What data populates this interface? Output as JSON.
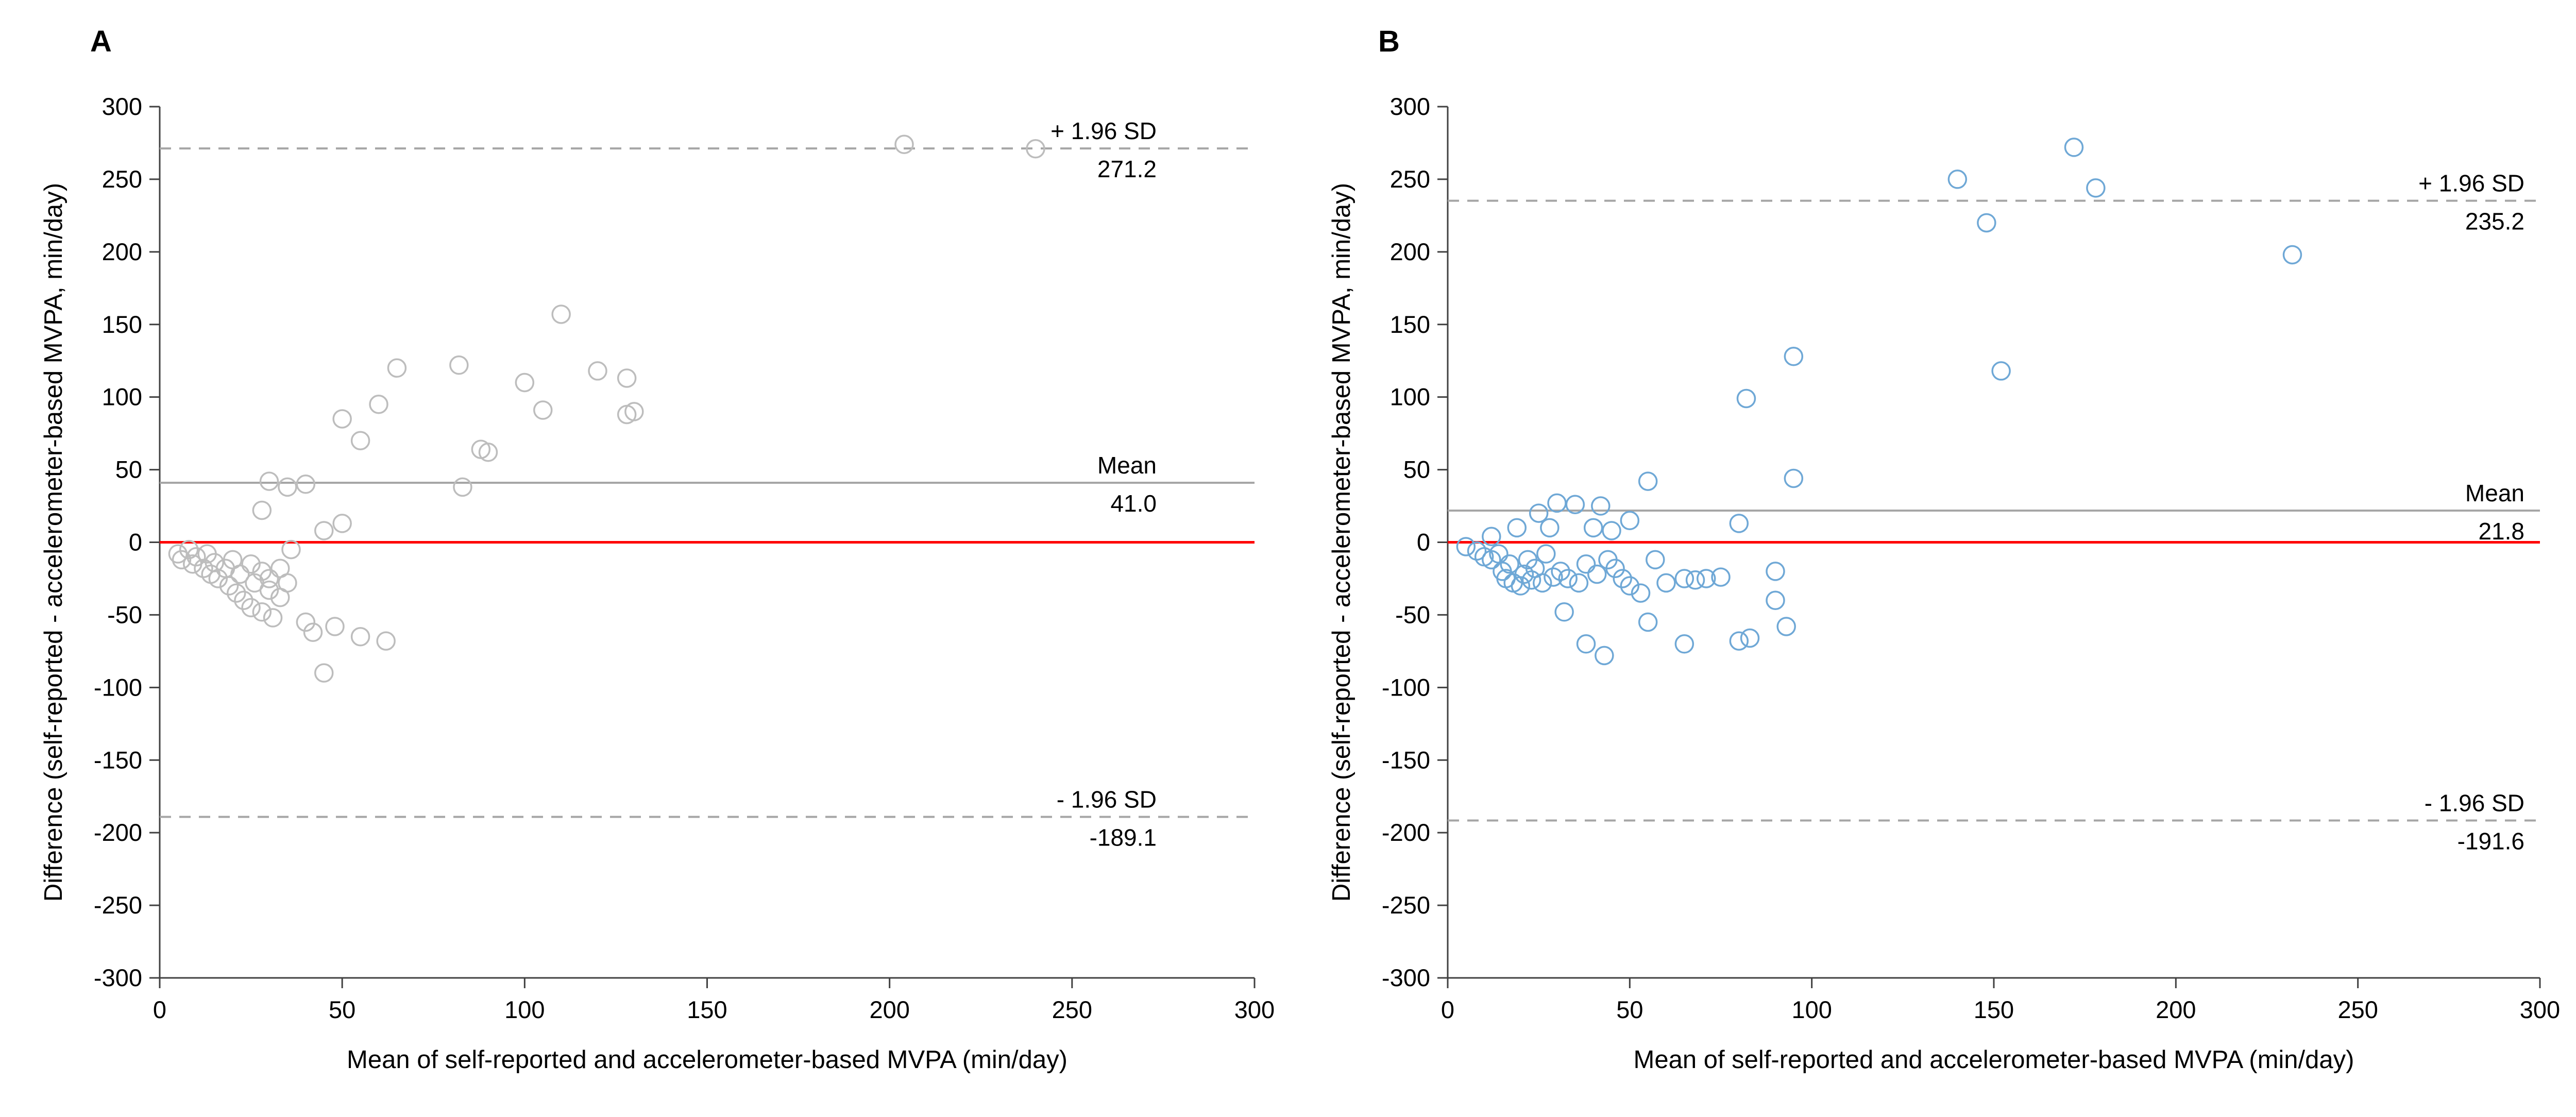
{
  "chart_data": [
    {
      "type": "scatter",
      "panel_label": "A",
      "xlabel": "Mean of self-reported and accelerometer-based MVPA (min/day)",
      "ylabel": "Difference (self-reported - accelerometer-based MVPA, min/day)",
      "xlim": [
        0,
        300
      ],
      "ylim": [
        -300,
        300
      ],
      "xticks": [
        0,
        50,
        100,
        150,
        200,
        250,
        300
      ],
      "yticks": [
        -300,
        -250,
        -200,
        -150,
        -100,
        -50,
        0,
        50,
        100,
        150,
        200,
        250,
        300
      ],
      "grid": false,
      "legend": "none",
      "marker": {
        "shape": "circle",
        "fill": "none",
        "stroke": "#bdbdbd"
      },
      "reference_lines": [
        {
          "id": "upper-loa",
          "y": 271.2,
          "style": "dashed",
          "color": "#a6a6a6",
          "label": "+ 1.96 SD",
          "value_label": "271.2"
        },
        {
          "id": "mean",
          "y": 41.0,
          "style": "solid",
          "color": "#a6a6a6",
          "label": "Mean",
          "value_label": "41.0"
        },
        {
          "id": "zero",
          "y": 0,
          "style": "solid",
          "color": "#ff0000",
          "label": "",
          "value_label": ""
        },
        {
          "id": "lower-loa",
          "y": -189.1,
          "style": "dashed",
          "color": "#a6a6a6",
          "label": "- 1.96 SD",
          "value_label": "-189.1"
        }
      ],
      "points": [
        [
          5,
          -8
        ],
        [
          6,
          -12
        ],
        [
          8,
          -5
        ],
        [
          9,
          -15
        ],
        [
          10,
          -10
        ],
        [
          12,
          -18
        ],
        [
          13,
          -8
        ],
        [
          14,
          -22
        ],
        [
          15,
          -14
        ],
        [
          16,
          -25
        ],
        [
          18,
          -18
        ],
        [
          19,
          -30
        ],
        [
          20,
          -12
        ],
        [
          21,
          -35
        ],
        [
          22,
          -22
        ],
        [
          23,
          -40
        ],
        [
          25,
          -15
        ],
        [
          25,
          -45
        ],
        [
          26,
          -28
        ],
        [
          28,
          -20
        ],
        [
          28,
          -48
        ],
        [
          30,
          -33
        ],
        [
          30,
          -25
        ],
        [
          31,
          -52
        ],
        [
          33,
          -38
        ],
        [
          33,
          -18
        ],
        [
          35,
          -28
        ],
        [
          36,
          -5
        ],
        [
          40,
          -55
        ],
        [
          42,
          -62
        ],
        [
          45,
          -90
        ],
        [
          48,
          -58
        ],
        [
          55,
          -65
        ],
        [
          62,
          -68
        ],
        [
          28,
          22
        ],
        [
          30,
          42
        ],
        [
          35,
          38
        ],
        [
          40,
          40
        ],
        [
          45,
          8
        ],
        [
          50,
          13
        ],
        [
          50,
          85
        ],
        [
          55,
          70
        ],
        [
          60,
          95
        ],
        [
          65,
          120
        ],
        [
          83,
          38
        ],
        [
          82,
          122
        ],
        [
          88,
          64
        ],
        [
          90,
          62
        ],
        [
          100,
          110
        ],
        [
          105,
          91
        ],
        [
          110,
          157
        ],
        [
          120,
          118
        ],
        [
          128,
          113
        ],
        [
          128,
          88
        ],
        [
          130,
          90
        ],
        [
          204,
          274
        ],
        [
          240,
          271
        ]
      ]
    },
    {
      "type": "scatter",
      "panel_label": "B",
      "xlabel": "Mean of self-reported and accelerometer-based MVPA (min/day)",
      "ylabel": "Difference (self-reported - accelerometer-based MVPA, min/day)",
      "xlim": [
        0,
        300
      ],
      "ylim": [
        -300,
        300
      ],
      "xticks": [
        0,
        50,
        100,
        150,
        200,
        250,
        300
      ],
      "yticks": [
        -300,
        -250,
        -200,
        -150,
        -100,
        -50,
        0,
        50,
        100,
        150,
        200,
        250,
        300
      ],
      "grid": false,
      "legend": "none",
      "marker": {
        "shape": "circle",
        "fill": "none",
        "stroke": "#6fa8d6"
      },
      "reference_lines": [
        {
          "id": "upper-loa",
          "y": 235.2,
          "style": "dashed",
          "color": "#a6a6a6",
          "label": "+ 1.96 SD",
          "value_label": "235.2"
        },
        {
          "id": "mean",
          "y": 21.8,
          "style": "solid",
          "color": "#a6a6a6",
          "label": "Mean",
          "value_label": "21.8"
        },
        {
          "id": "zero",
          "y": 0,
          "style": "solid",
          "color": "#ff0000",
          "label": "",
          "value_label": ""
        },
        {
          "id": "lower-loa",
          "y": -191.6,
          "style": "dashed",
          "color": "#a6a6a6",
          "label": "- 1.96 SD",
          "value_label": "-191.6"
        }
      ],
      "points": [
        [
          5,
          -3
        ],
        [
          8,
          -6
        ],
        [
          10,
          -10
        ],
        [
          12,
          4
        ],
        [
          12,
          -12
        ],
        [
          14,
          -8
        ],
        [
          15,
          -20
        ],
        [
          16,
          -25
        ],
        [
          17,
          -15
        ],
        [
          18,
          -28
        ],
        [
          19,
          10
        ],
        [
          20,
          -30
        ],
        [
          21,
          -22
        ],
        [
          22,
          -12
        ],
        [
          23,
          -26
        ],
        [
          24,
          -18
        ],
        [
          25,
          20
        ],
        [
          26,
          -28
        ],
        [
          27,
          -8
        ],
        [
          28,
          10
        ],
        [
          29,
          -24
        ],
        [
          30,
          27
        ],
        [
          31,
          -20
        ],
        [
          32,
          -48
        ],
        [
          33,
          -25
        ],
        [
          35,
          26
        ],
        [
          36,
          -28
        ],
        [
          38,
          -15
        ],
        [
          38,
          -70
        ],
        [
          40,
          10
        ],
        [
          41,
          -22
        ],
        [
          42,
          25
        ],
        [
          43,
          -78
        ],
        [
          44,
          -12
        ],
        [
          45,
          8
        ],
        [
          46,
          -18
        ],
        [
          48,
          -25
        ],
        [
          50,
          15
        ],
        [
          50,
          -30
        ],
        [
          53,
          -35
        ],
        [
          55,
          42
        ],
        [
          55,
          -55
        ],
        [
          57,
          -12
        ],
        [
          60,
          -28
        ],
        [
          65,
          -25
        ],
        [
          65,
          -70
        ],
        [
          68,
          -26
        ],
        [
          71,
          -25
        ],
        [
          75,
          -24
        ],
        [
          80,
          13
        ],
        [
          80,
          -68
        ],
        [
          83,
          -66
        ],
        [
          82,
          99
        ],
        [
          90,
          -20
        ],
        [
          90,
          -40
        ],
        [
          93,
          -58
        ],
        [
          95,
          44
        ],
        [
          95,
          128
        ],
        [
          140,
          250
        ],
        [
          148,
          220
        ],
        [
          152,
          118
        ],
        [
          172,
          272
        ],
        [
          178,
          244
        ],
        [
          232,
          198
        ]
      ]
    }
  ]
}
